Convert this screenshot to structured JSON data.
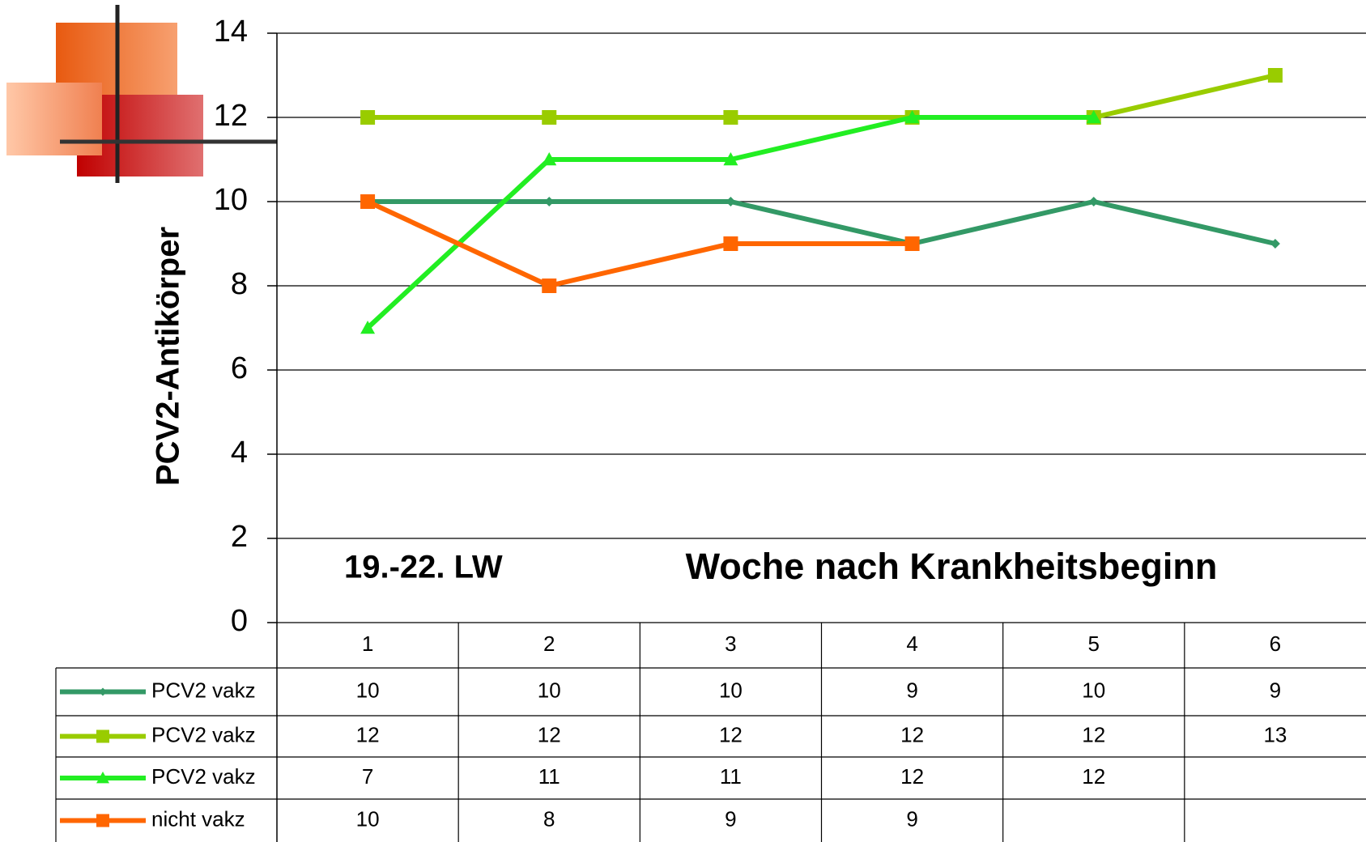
{
  "chart_data": {
    "type": "line",
    "y_label": "PCV2-Antikörper",
    "annotations": [
      "19.-22. LW",
      "Woche nach Krankheitsbeginn"
    ],
    "categories": [
      "1",
      "2",
      "3",
      "4",
      "5",
      "6"
    ],
    "series": [
      {
        "name": "PCV2 vakz",
        "color": "#339966",
        "marker": "diamond",
        "values": [
          10,
          10,
          10,
          9,
          10,
          9
        ]
      },
      {
        "name": "PCV2 vakz",
        "color": "#99cc00",
        "marker": "square",
        "values": [
          12,
          12,
          12,
          12,
          12,
          13
        ]
      },
      {
        "name": "PCV2 vakz",
        "color": "#22ee22",
        "marker": "triangle",
        "values": [
          7,
          11,
          11,
          12,
          12,
          null
        ]
      },
      {
        "name": "nicht vakz",
        "color": "#ff6600",
        "marker": "square",
        "values": [
          10,
          8,
          9,
          9,
          null,
          null
        ]
      }
    ],
    "ylim": [
      0,
      14
    ],
    "yticks": [
      0,
      2,
      4,
      6,
      8,
      10,
      12,
      14
    ],
    "grid": true,
    "data_table": true
  }
}
